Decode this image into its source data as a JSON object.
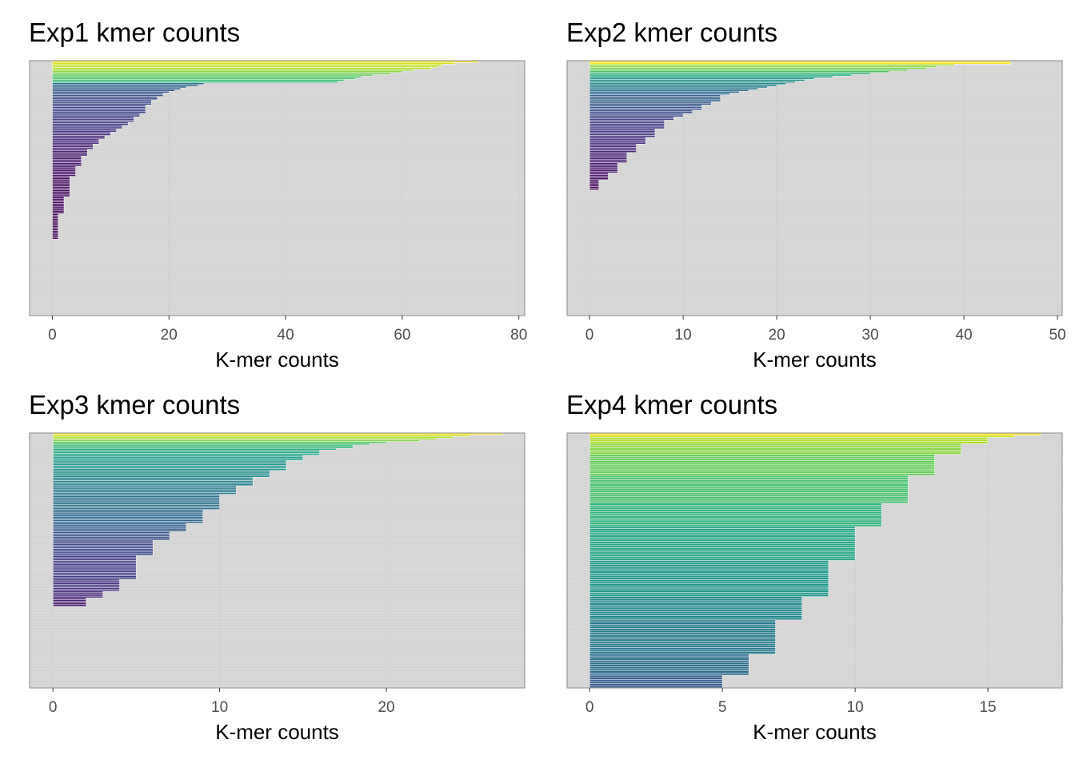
{
  "chart_data": [
    {
      "type": "bar",
      "orientation": "horizontal",
      "title": "Exp1 kmer counts",
      "xlabel": "K-mer counts",
      "ylabel": "",
      "xlim": [
        -3.9,
        81
      ],
      "xticks": [
        0,
        20,
        40,
        60,
        80
      ],
      "background": "#d9d9d9",
      "grid": true,
      "colormap": "viridis",
      "n_rows": 150,
      "values": [
        73,
        69,
        67,
        66,
        65,
        62,
        60,
        58,
        55,
        53,
        52,
        50,
        49,
        26,
        25,
        23,
        22,
        21,
        20,
        19,
        19,
        18,
        18,
        17,
        17,
        17,
        16,
        16,
        16,
        16,
        16,
        15,
        15,
        14,
        14,
        14,
        13,
        13,
        12,
        12,
        11,
        11,
        10,
        10,
        9,
        9,
        8,
        8,
        8,
        7,
        7,
        7,
        6,
        6,
        6,
        6,
        5,
        5,
        5,
        5,
        5,
        5,
        4,
        4,
        4,
        4,
        4,
        4,
        3,
        3,
        3,
        3,
        3,
        3,
        3,
        3,
        3,
        3,
        3,
        3,
        2,
        2,
        2,
        2,
        2,
        2,
        2,
        2,
        2,
        2,
        1,
        1,
        1,
        1,
        1,
        1,
        1,
        1,
        1,
        1,
        1,
        1,
        1,
        1,
        1,
        0,
        0,
        0,
        0,
        0,
        0,
        0,
        0,
        0,
        0,
        0,
        0,
        0,
        0,
        0,
        0,
        0,
        0,
        0,
        0,
        0,
        0,
        0,
        0,
        0,
        0,
        0,
        0,
        0,
        0,
        0,
        0,
        0,
        0,
        0,
        0,
        0,
        0,
        0,
        0,
        0,
        0,
        0,
        0,
        0
      ]
    },
    {
      "type": "bar",
      "orientation": "horizontal",
      "title": "Exp2 kmer counts",
      "xlabel": "K-mer counts",
      "ylabel": "",
      "xlim": [
        -2.4,
        50.5
      ],
      "xticks": [
        0,
        10,
        20,
        30,
        40,
        50
      ],
      "background": "#d9d9d9",
      "grid": true,
      "colormap": "viridis",
      "n_rows": 150,
      "values": [
        45,
        45,
        39,
        37,
        36,
        34,
        32,
        30,
        28,
        26,
        24,
        23,
        22,
        21,
        20,
        19,
        18,
        17,
        16,
        15,
        14,
        14,
        14,
        14,
        13,
        13,
        12,
        12,
        12,
        11,
        11,
        10,
        10,
        9,
        9,
        8,
        8,
        8,
        8,
        8,
        7,
        7,
        7,
        7,
        7,
        6,
        6,
        6,
        6,
        5,
        5,
        5,
        5,
        5,
        4,
        4,
        4,
        4,
        4,
        4,
        3,
        3,
        3,
        3,
        3,
        3,
        2,
        2,
        2,
        2,
        1,
        1,
        1,
        1,
        1,
        1,
        0,
        0,
        0,
        0,
        0,
        0,
        0,
        0,
        0,
        0,
        0,
        0,
        0,
        0,
        0,
        0,
        0,
        0,
        0,
        0,
        0,
        0,
        0,
        0,
        0,
        0,
        0,
        0,
        0,
        0,
        0,
        0,
        0,
        0,
        0,
        0,
        0,
        0,
        0,
        0,
        0,
        0,
        0,
        0,
        0,
        0,
        0,
        0,
        0,
        0,
        0,
        0,
        0,
        0,
        0,
        0,
        0,
        0,
        0,
        0,
        0,
        0,
        0,
        0,
        0,
        0,
        0,
        0,
        0,
        0,
        0,
        0,
        0,
        0
      ]
    },
    {
      "type": "bar",
      "orientation": "horizontal",
      "title": "Exp3 kmer counts",
      "xlabel": "K-mer counts",
      "ylabel": "",
      "xlim": [
        -1.4,
        28.3
      ],
      "xticks": [
        0,
        10,
        20
      ],
      "background": "#d9d9d9",
      "grid": true,
      "colormap": "viridis",
      "n_rows": 150,
      "values": [
        27,
        25,
        24,
        23,
        22,
        20,
        19,
        18,
        18,
        17,
        16,
        16,
        16,
        15,
        15,
        15,
        14,
        14,
        14,
        14,
        14,
        14,
        13,
        13,
        13,
        13,
        12,
        12,
        12,
        12,
        12,
        11,
        11,
        11,
        11,
        11,
        10,
        10,
        10,
        10,
        10,
        10,
        10,
        10,
        10,
        9,
        9,
        9,
        9,
        9,
        9,
        9,
        9,
        8,
        8,
        8,
        8,
        8,
        7,
        7,
        7,
        7,
        7,
        6,
        6,
        6,
        6,
        6,
        6,
        6,
        6,
        6,
        5,
        5,
        5,
        5,
        5,
        5,
        5,
        5,
        5,
        5,
        5,
        5,
        5,
        5,
        4,
        4,
        4,
        4,
        4,
        4,
        4,
        3,
        3,
        3,
        3,
        2,
        2,
        2,
        2,
        2,
        0,
        0,
        0,
        0,
        0,
        0,
        0,
        0,
        0,
        0,
        0,
        0,
        0,
        0,
        0,
        0,
        0,
        0,
        0,
        0,
        0,
        0,
        0,
        0,
        0,
        0,
        0,
        0,
        0,
        0,
        0,
        0,
        0,
        0,
        0,
        0,
        0,
        0,
        0,
        0,
        0,
        0,
        0,
        0,
        0,
        0,
        0,
        0
      ]
    },
    {
      "type": "bar",
      "orientation": "horizontal",
      "title": "Exp4 kmer counts",
      "xlabel": "K-mer counts",
      "ylabel": "",
      "xlim": [
        -0.85,
        17.8
      ],
      "xticks": [
        0,
        5,
        10,
        15
      ],
      "background": "#d9d9d9",
      "grid": true,
      "colormap": "viridis",
      "n_rows": 120,
      "values": [
        17,
        16,
        15,
        15,
        15,
        14,
        14,
        14,
        14,
        14,
        13,
        13,
        13,
        13,
        13,
        13,
        13,
        13,
        13,
        13,
        12,
        12,
        12,
        12,
        12,
        12,
        12,
        12,
        12,
        12,
        12,
        12,
        12,
        11,
        11,
        11,
        11,
        11,
        11,
        11,
        11,
        11,
        11,
        11,
        10,
        10,
        10,
        10,
        10,
        10,
        10,
        10,
        10,
        10,
        10,
        10,
        10,
        10,
        10,
        10,
        9,
        9,
        9,
        9,
        9,
        9,
        9,
        9,
        9,
        9,
        9,
        9,
        9,
        9,
        9,
        9,
        9,
        8,
        8,
        8,
        8,
        8,
        8,
        8,
        8,
        8,
        8,
        8,
        7,
        7,
        7,
        7,
        7,
        7,
        7,
        7,
        7,
        7,
        7,
        7,
        7,
        7,
        7,
        7,
        6,
        6,
        6,
        6,
        6,
        6,
        6,
        6,
        6,
        6,
        5,
        5,
        5,
        5,
        5,
        5
      ]
    }
  ]
}
